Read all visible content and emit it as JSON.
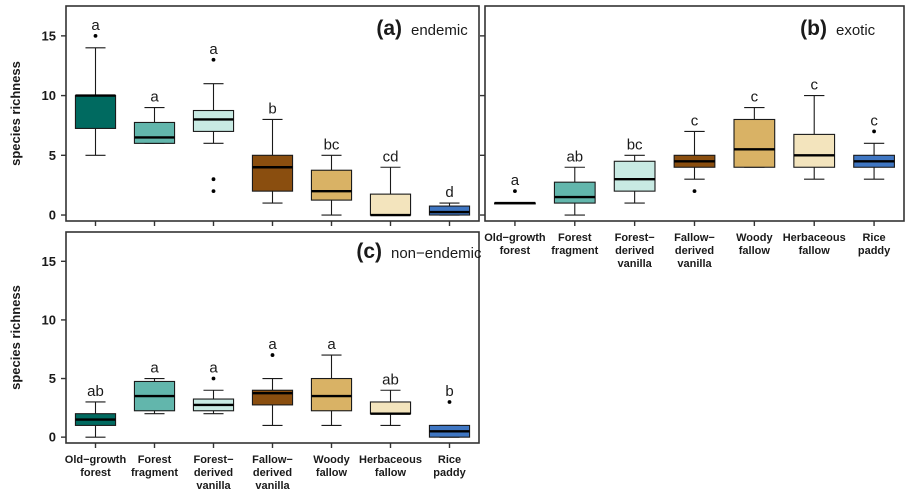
{
  "chart_data": [
    {
      "type": "boxplot",
      "panel_tag": "(a)",
      "panel_title": "endemic",
      "ylabel": "species richness",
      "ylim": [
        -0.5,
        17.5
      ],
      "yticks": [
        0,
        5,
        10,
        15
      ],
      "categories": [
        "Old-growth forest",
        "Forest fragment",
        "Forest-derived vanilla",
        "Fallow-derived vanilla",
        "Woody fallow",
        "Herbaceous fallow",
        "Rice paddy"
      ],
      "colors": [
        "#006a60",
        "#62b6ac",
        "#c8eae3",
        "#8a4e0f",
        "#d9b265",
        "#f3e4bd",
        "#3f76c2"
      ],
      "boxes": [
        {
          "whisker_low": 5,
          "q1": 7.25,
          "median": 10,
          "q3": 10,
          "whisker_high": 14,
          "outliers": [
            15
          ],
          "letter": "a"
        },
        {
          "whisker_low": 6,
          "q1": 6,
          "median": 6.5,
          "q3": 7.75,
          "whisker_high": 9,
          "outliers": [],
          "letter": "a"
        },
        {
          "whisker_low": 6,
          "q1": 7,
          "median": 8,
          "q3": 8.75,
          "whisker_high": 11,
          "outliers": [
            2,
            3,
            13
          ],
          "letter": "a"
        },
        {
          "whisker_low": 1,
          "q1": 2,
          "median": 4,
          "q3": 5,
          "whisker_high": 8,
          "outliers": [],
          "letter": "b"
        },
        {
          "whisker_low": 0,
          "q1": 1.25,
          "median": 2,
          "q3": 3.75,
          "whisker_high": 5,
          "outliers": [],
          "letter": "bc"
        },
        {
          "whisker_low": 0,
          "q1": 0,
          "median": 0,
          "q3": 1.75,
          "whisker_high": 4,
          "outliers": [],
          "letter": "cd"
        },
        {
          "whisker_low": 0,
          "q1": 0,
          "median": 0.25,
          "q3": 0.75,
          "whisker_high": 1,
          "outliers": [],
          "letter": "d"
        }
      ]
    },
    {
      "type": "boxplot",
      "panel_tag": "(b)",
      "panel_title": "exotic",
      "ylabel": "",
      "ylim": [
        -0.5,
        17.5
      ],
      "yticks": [
        0,
        5,
        10,
        15
      ],
      "categories": [
        "Old-growth forest",
        "Forest fragment",
        "Forest-derived vanilla",
        "Fallow-derived vanilla",
        "Woody fallow",
        "Herbaceous fallow",
        "Rice paddy"
      ],
      "colors": [
        "#006a60",
        "#62b6ac",
        "#c8eae3",
        "#8a4e0f",
        "#d9b265",
        "#f3e4bd",
        "#3f76c2"
      ],
      "boxes": [
        {
          "whisker_low": 1,
          "q1": 1,
          "median": 1,
          "q3": 1,
          "whisker_high": 1,
          "outliers": [
            2
          ],
          "letter": "a"
        },
        {
          "whisker_low": 0,
          "q1": 1,
          "median": 1.5,
          "q3": 2.75,
          "whisker_high": 4,
          "outliers": [],
          "letter": "ab"
        },
        {
          "whisker_low": 1,
          "q1": 2,
          "median": 3,
          "q3": 4.5,
          "whisker_high": 5,
          "outliers": [],
          "letter": "bc"
        },
        {
          "whisker_low": 3,
          "q1": 4,
          "median": 4.5,
          "q3": 5,
          "whisker_high": 7,
          "outliers": [
            2
          ],
          "letter": "c"
        },
        {
          "whisker_low": 4,
          "q1": 4,
          "median": 5.5,
          "q3": 8,
          "whisker_high": 9,
          "outliers": [],
          "letter": "c"
        },
        {
          "whisker_low": 3,
          "q1": 4,
          "median": 5,
          "q3": 6.75,
          "whisker_high": 10,
          "outliers": [],
          "letter": "c"
        },
        {
          "whisker_low": 3,
          "q1": 4,
          "median": 4.5,
          "q3": 5,
          "whisker_high": 6,
          "outliers": [
            7
          ],
          "letter": "c"
        }
      ]
    },
    {
      "type": "boxplot",
      "panel_tag": "(c)",
      "panel_title": "non−endemic",
      "ylabel": "species richness",
      "ylim": [
        -0.5,
        17.5
      ],
      "yticks": [
        0,
        5,
        10,
        15
      ],
      "categories": [
        "Old-growth forest",
        "Forest fragment",
        "Forest-derived vanilla",
        "Fallow-derived vanilla",
        "Woody fallow",
        "Herbaceous fallow",
        "Rice paddy"
      ],
      "colors": [
        "#006a60",
        "#62b6ac",
        "#c8eae3",
        "#8a4e0f",
        "#d9b265",
        "#f3e4bd",
        "#3f76c2"
      ],
      "boxes": [
        {
          "whisker_low": 0,
          "q1": 1,
          "median": 1.5,
          "q3": 2,
          "whisker_high": 3,
          "outliers": [],
          "letter": "ab"
        },
        {
          "whisker_low": 2,
          "q1": 2.25,
          "median": 3.5,
          "q3": 4.75,
          "whisker_high": 5,
          "outliers": [],
          "letter": "a"
        },
        {
          "whisker_low": 2,
          "q1": 2.25,
          "median": 2.75,
          "q3": 3.25,
          "whisker_high": 4,
          "outliers": [
            5
          ],
          "letter": "a"
        },
        {
          "whisker_low": 1,
          "q1": 2.75,
          "median": 3.75,
          "q3": 4,
          "whisker_high": 5,
          "outliers": [
            7
          ],
          "letter": "a"
        },
        {
          "whisker_low": 1,
          "q1": 2.25,
          "median": 3.5,
          "q3": 5,
          "whisker_high": 7,
          "outliers": [],
          "letter": "a"
        },
        {
          "whisker_low": 1,
          "q1": 2,
          "median": 2,
          "q3": 3,
          "whisker_high": 4,
          "outliers": [],
          "letter": "ab"
        },
        {
          "whisker_low": 0,
          "q1": 0,
          "median": 0.5,
          "q3": 1,
          "whisker_high": 1,
          "outliers": [
            3
          ],
          "letter": "b"
        }
      ]
    }
  ],
  "x_tick_labels": [
    [
      "Old−growth",
      "forest"
    ],
    [
      "Forest",
      "fragment"
    ],
    [
      "Forest−",
      "derived",
      "vanilla"
    ],
    [
      "Fallow−",
      "derived",
      "vanilla"
    ],
    [
      "Woody",
      "fallow"
    ],
    [
      "Herbaceous",
      "fallow"
    ],
    [
      "Rice",
      "paddy"
    ]
  ],
  "colors": {
    "box_border": "#1a1a1a",
    "axis": "#333333",
    "text": "#1a1a1a"
  }
}
